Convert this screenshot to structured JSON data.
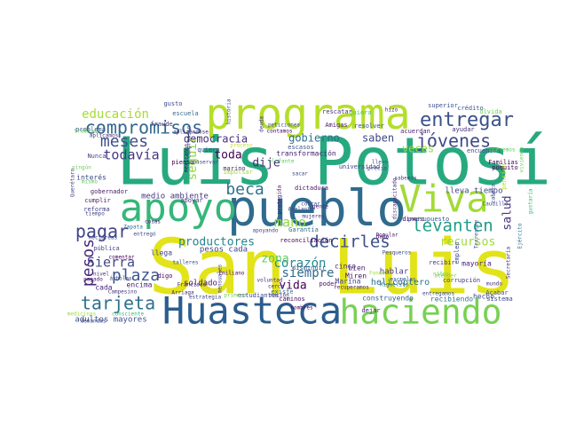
{
  "words": [
    {
      "text": "San Luis",
      "color": "#e2e318"
    },
    {
      "text": "Luis Potosí",
      "color": "#27a980"
    },
    {
      "text": "pueblo",
      "color": "#2f6b8e"
    },
    {
      "text": "programa",
      "color": "#b5de2b"
    },
    {
      "text": "Huasteca",
      "color": "#2b5d8d"
    },
    {
      "text": "haciendo",
      "color": "#77d153"
    },
    {
      "text": "apoyo",
      "color": "#35b779"
    },
    {
      "text": "Viva",
      "color": "#a2da37"
    },
    {
      "text": "compromisos",
      "color": "#31688e"
    },
    {
      "text": "entregar",
      "color": "#3b528b"
    },
    {
      "text": "jóvenes",
      "color": "#3e4a89"
    },
    {
      "text": "levanten",
      "color": "#1f9e89"
    },
    {
      "text": "decirles",
      "color": "#3b518b"
    },
    {
      "text": "tarjeta",
      "color": "#2d708e"
    },
    {
      "text": "pagar",
      "color": "#414487"
    },
    {
      "text": "meses",
      "color": "#3d4e8a"
    },
    {
      "text": "beca",
      "color": "#2c728e"
    },
    {
      "text": "todavía",
      "color": "#453882"
    },
    {
      "text": "educación",
      "color": "#a8db34"
    },
    {
      "text": "pesos",
      "color": "#482878"
    },
    {
      "text": "plaza",
      "color": "#3a548c"
    },
    {
      "text": "Sierra",
      "color": "#3e4989"
    },
    {
      "text": "mano",
      "color": "#90d743"
    },
    {
      "text": "vida",
      "color": "#440154"
    },
    {
      "text": "corazón",
      "color": "#23898e"
    },
    {
      "text": "siempre",
      "color": "#30698e"
    },
    {
      "text": "zona",
      "color": "#5ec962"
    },
    {
      "text": "productores",
      "color": "#25858e"
    },
    {
      "text": "recursos",
      "color": "#9dd93b"
    },
    {
      "text": "salud",
      "color": "#46337e"
    },
    {
      "text": "democracia",
      "color": "#472c7a"
    },
    {
      "text": "gobierno",
      "color": "#2e6f8e"
    },
    {
      "text": "saben",
      "color": "#3f4788"
    },
    {
      "text": "toda",
      "color": "#440154"
    },
    {
      "text": "seguir",
      "color": "#8fd744"
    },
    {
      "text": "dije",
      "color": "#472f7d"
    },
    {
      "text": "veces",
      "color": "#95d840"
    },
    {
      "text": "helicóptero",
      "color": "#2a768e"
    },
    {
      "text": "soldado",
      "color": "#481a6c"
    },
    {
      "text": "medio ambiente",
      "color": "#46337f"
    },
    {
      "text": "pesos cada",
      "color": "#3f4788"
    },
    {
      "text": "cinco",
      "color": "#482979"
    },
    {
      "text": "reconciliación",
      "color": "#440154"
    },
    {
      "text": "construyendo",
      "color": "#355f8d"
    },
    {
      "text": "recibiendo",
      "color": "#2c728e"
    },
    {
      "text": "adultos mayores",
      "color": "#3b528b"
    },
    {
      "text": "encima",
      "color": "#482475"
    },
    {
      "text": "llega",
      "color": "#424086"
    },
    {
      "text": "cada",
      "color": "#482677"
    },
    {
      "text": "hablar",
      "color": "#443983"
    },
    {
      "text": "Marina",
      "color": "#3f4788"
    },
    {
      "text": "Miren",
      "color": "#471365"
    },
    {
      "text": "bien",
      "color": "#481f70"
    },
    {
      "text": "lleva tiempo",
      "color": "#404688"
    },
    {
      "text": "hecho",
      "color": "#3e4a89"
    },
    {
      "text": "mayoría",
      "color": "#482475"
    },
    {
      "text": "superior",
      "color": "#3b528b"
    },
    {
      "text": "crédito",
      "color": "#3a548c"
    },
    {
      "text": "rescatar",
      "color": "#46327e"
    },
    {
      "text": "gusto",
      "color": "#3e4a89"
    },
    {
      "text": "escuela",
      "color": "#31688e"
    },
    {
      "text": "dinero",
      "color": "#440154"
    },
    {
      "text": "universidad",
      "color": "#424086"
    },
    {
      "text": "presupuesto",
      "color": "#39568c"
    },
    {
      "text": "disminuir",
      "color": "#3b528b"
    },
    {
      "text": "transformación",
      "color": "#482173"
    },
    {
      "text": "gobernador",
      "color": "#48186a"
    },
    {
      "text": "cumplir",
      "color": "#482374"
    },
    {
      "text": "reforma",
      "color": "#433e85"
    },
    {
      "text": "interés",
      "color": "#3e4a89"
    },
    {
      "text": "marino",
      "color": "#482878"
    },
    {
      "text": "apoyar",
      "color": "#453581"
    },
    {
      "text": "poder",
      "color": "#471063"
    },
    {
      "text": "Garantía",
      "color": "#2d718e"
    },
    {
      "text": "problema",
      "color": "#3b528b"
    },
    {
      "text": "piensa",
      "color": "#440154"
    },
    {
      "text": "Nunca",
      "color": "#414487"
    },
    {
      "text": "digo",
      "color": "#450457"
    },
    {
      "text": "existe",
      "color": "#2a788e"
    },
    {
      "text": "mujeres",
      "color": "#453781"
    },
    {
      "text": "dictadura",
      "color": "#481467"
    },
    {
      "text": "caminos",
      "color": "#46085c"
    },
    {
      "text": "nación",
      "color": "#472c7a"
    },
    {
      "text": "estudiantes",
      "color": "#3f4788"
    },
    {
      "text": "nombres",
      "color": "#440154"
    },
    {
      "text": "dejar",
      "color": "#482475"
    },
    {
      "text": "Acabar",
      "color": "#3b528b"
    },
    {
      "text": "sistema",
      "color": "#3e4989"
    },
    {
      "text": "atender",
      "color": "#7ad151"
    },
    {
      "text": "corrupción",
      "color": "#453882"
    },
    {
      "text": "recibir",
      "color": "#472d7b"
    },
    {
      "text": "empleo",
      "color": "#3e4a89"
    },
    {
      "text": "pensión",
      "color": "#b8de29"
    },
    {
      "text": "Familias",
      "color": "#46085c"
    },
    {
      "text": "poquito",
      "color": "#440154"
    },
    {
      "text": "olvida",
      "color": "#6ece58"
    },
    {
      "text": "encuentra",
      "color": "#3e4a89"
    },
    {
      "text": "ayudar",
      "color": "#472d7b"
    },
    {
      "text": "acuerdan",
      "color": "#481d6f"
    },
    {
      "text": "resolver",
      "color": "#3b528b"
    },
    {
      "text": "Amigas",
      "color": "#481668"
    },
    {
      "text": "quiera",
      "color": "#4ac16d"
    },
    {
      "text": "quiero",
      "color": "#3e4a89"
    },
    {
      "text": "fraude",
      "color": "#46327e"
    },
    {
      "text": "trabajar",
      "color": "#5ec962"
    },
    {
      "text": "proceso",
      "color": "#c2df23"
    },
    {
      "text": "conservar",
      "color": "#3f4788"
    },
    {
      "text": "impulsar",
      "color": "#a0da39"
    },
    {
      "text": "escasos",
      "color": "#3b528b"
    },
    {
      "text": "sacar",
      "color": "#3f4788"
    },
    {
      "text": "gente",
      "color": "#482475"
    },
    {
      "text": "ningún",
      "color": "#6ece58"
    },
    {
      "text": "tiempo",
      "color": "#3f4788"
    },
    {
      "text": "mismo",
      "color": "#5cc863"
    },
    {
      "text": "hectáreas",
      "color": "#3e4989"
    },
    {
      "text": "Zapata",
      "color": "#2d708e"
    },
    {
      "text": "pública",
      "color": "#3f4788"
    },
    {
      "text": "comentar",
      "color": "#440154"
    },
    {
      "text": "talleres",
      "color": "#3b528b"
    },
    {
      "text": "nivel",
      "color": "#472f7d"
    },
    {
      "text": "árboles",
      "color": "#3e4989"
    },
    {
      "text": "estrategia",
      "color": "#3f4788"
    },
    {
      "text": "primero",
      "color": "#6ece58"
    },
    {
      "text": "voluntad",
      "color": "#482677"
    },
    {
      "text": "Emiliano",
      "color": "#440154"
    },
    {
      "text": "Arriaga",
      "color": "#482475"
    },
    {
      "text": "Campesino",
      "color": "#453882"
    },
    {
      "text": "consciente",
      "color": "#35b779"
    },
    {
      "text": "demandas",
      "color": "#3e4a89"
    },
    {
      "text": "medicinas",
      "color": "#9fda3a"
    },
    {
      "text": "cerca",
      "color": "#482878"
    },
    {
      "text": "Miguelito",
      "color": "#2d708e"
    },
    {
      "text": "precio",
      "color": "#3f4788"
    },
    {
      "text": "llevo",
      "color": "#3e4a89"
    },
    {
      "text": "hizo",
      "color": "#481a6c"
    },
    {
      "text": "Popular",
      "color": "#482475"
    },
    {
      "text": "Caudillo",
      "color": "#3b528b"
    },
    {
      "text": "Secretaría",
      "color": "#453882"
    },
    {
      "text": "Ejército",
      "color": "#2d708e"
    },
    {
      "text": "cosas",
      "color": "#472c7a"
    },
    {
      "text": "entregó",
      "color": "#3e4a89"
    },
    {
      "text": "escuelas",
      "color": "#3b528b"
    },
    {
      "text": "pagado",
      "color": "#48186a"
    },
    {
      "text": "sabemos",
      "color": "#3f4788"
    },
    {
      "text": "peticiones",
      "color": "#3e4a89"
    },
    {
      "text": "contamos",
      "color": "#440154"
    },
    {
      "text": "aplicándose",
      "color": "#482475"
    },
    {
      "text": "aplicamos",
      "color": "#46327e"
    },
    {
      "text": "compromiso",
      "color": "#3e4a89"
    },
    {
      "text": "mensuales",
      "color": "#3f4788"
    },
    {
      "text": "protegida",
      "color": "#481467"
    },
    {
      "text": "mexicanos",
      "color": "#440154"
    },
    {
      "text": "elefante",
      "color": "#5ec962"
    },
    {
      "text": "Querétaro",
      "color": "#3f4788"
    },
    {
      "text": "vivienda",
      "color": "#6ece58"
    },
    {
      "text": "historia",
      "color": "#3b528b"
    },
    {
      "text": "deuda",
      "color": "#46327e"
    },
    {
      "text": "daño",
      "color": "#440154"
    },
    {
      "text": "Fondo",
      "color": "#a0da39"
    },
    {
      "text": "Pesqueros",
      "color": "#3e4989"
    },
    {
      "text": "discapacitado",
      "color": "#482878"
    },
    {
      "text": "Terrestre",
      "color": "#3e4a89"
    },
    {
      "text": "cabeza",
      "color": "#3f4788"
    },
    {
      "text": "gustaría",
      "color": "#35b779"
    },
    {
      "text": "mundo",
      "color": "#472c7a"
    },
    {
      "text": "entregamos",
      "color": "#3e4a89"
    },
    {
      "text": "Francisco",
      "color": "#482677"
    },
    {
      "text": "cobrar",
      "color": "#3f4788"
    },
    {
      "text": "Adelante",
      "color": "#3b528b"
    },
    {
      "text": "niños",
      "color": "#6ece58"
    },
    {
      "text": "queremos",
      "color": "#5ec962"
    },
    {
      "text": "recuperamos",
      "color": "#482475"
    },
    {
      "text": "apoyando",
      "color": "#3f4788"
    }
  ]
}
